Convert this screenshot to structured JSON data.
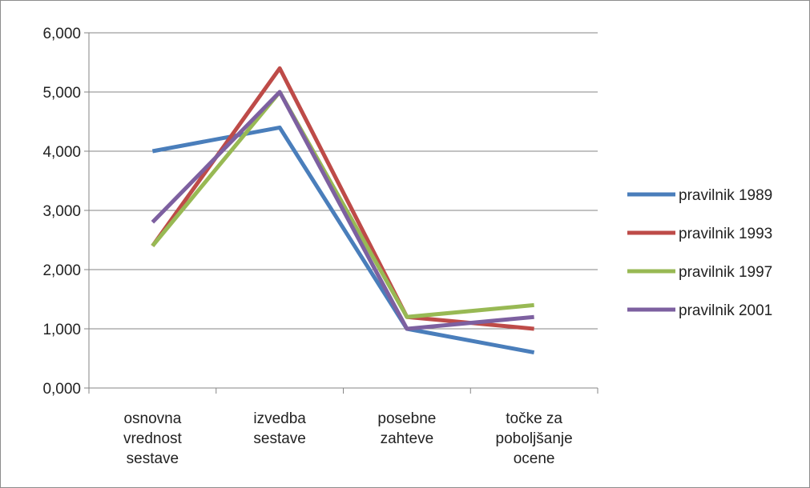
{
  "chart_data": {
    "type": "line",
    "title": "",
    "xlabel": "",
    "ylabel": "",
    "categories": [
      [
        "osnovna",
        "vrednost",
        "sestave"
      ],
      [
        "izvedba",
        "sestave"
      ],
      [
        "posebne",
        "zahteve"
      ],
      [
        "točke za",
        "poboljšanje",
        "ocene"
      ]
    ],
    "ylim": [
      0,
      6
    ],
    "yticks": [
      0,
      1,
      2,
      3,
      4,
      5,
      6
    ],
    "ytick_labels": [
      "0,000",
      "1,000",
      "2,000",
      "3,000",
      "4,000",
      "5,000",
      "6,000"
    ],
    "grid": "horizontal",
    "legend_position": "right",
    "series": [
      {
        "name": "pravilnik 1989",
        "color": "#4a7ebb",
        "values": [
          4.0,
          4.4,
          1.0,
          0.6
        ]
      },
      {
        "name": "pravilnik 1993",
        "color": "#be4b48",
        "values": [
          2.4,
          5.4,
          1.2,
          1.0
        ]
      },
      {
        "name": "pravilnik 1997",
        "color": "#98b954",
        "values": [
          2.4,
          5.0,
          1.2,
          1.4
        ]
      },
      {
        "name": "pravilnik 2001",
        "color": "#7d60a0",
        "values": [
          2.8,
          5.0,
          1.0,
          1.2
        ]
      }
    ]
  }
}
